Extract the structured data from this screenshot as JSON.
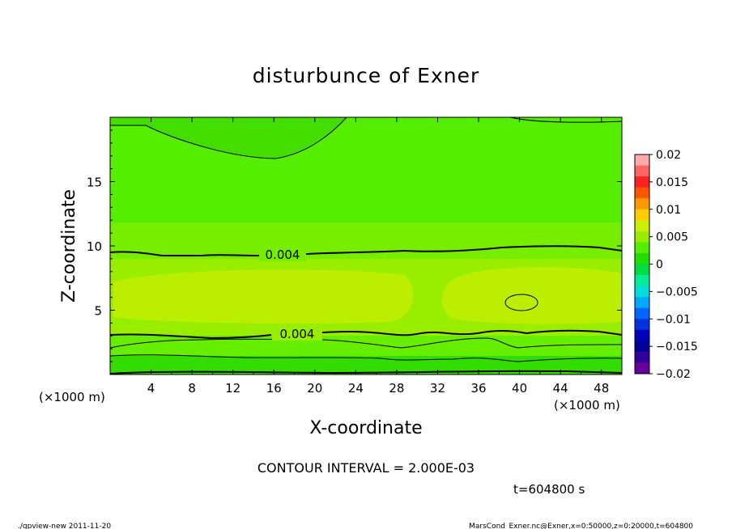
{
  "chart_data": {
    "type": "heatmap",
    "title": "disturbunce of Exner",
    "xlabel": "X-coordinate",
    "ylabel": "Z-coordinate",
    "x_unit": "(×1000 m)",
    "x_unit_right": "(×1000 m)",
    "xlim": [
      0,
      50
    ],
    "ylim": [
      0,
      20
    ],
    "x_ticks": [
      4,
      8,
      12,
      16,
      20,
      24,
      28,
      32,
      36,
      40,
      44,
      48
    ],
    "y_ticks": [
      5,
      10,
      15
    ],
    "contour_interval_text": "CONTOUR INTERVAL = 2.000E-03",
    "time_text": "t=604800 s",
    "contour_labels": [
      "0.004",
      "0.004"
    ],
    "colorbar": {
      "ticks": [
        "0.02",
        "0.015",
        "0.01",
        "0.005",
        "0",
        "−0.005",
        "−0.01",
        "−0.015",
        "−0.02"
      ],
      "colors": [
        "#ffaaaa",
        "#ff6666",
        "#ff2222",
        "#ff5500",
        "#ff9900",
        "#ffcc00",
        "#ccee00",
        "#99ee00",
        "#55ee00",
        "#22dd00",
        "#00dd44",
        "#00ee99",
        "#00dddd",
        "#00aaff",
        "#0066ff",
        "#0033dd",
        "#0000bb",
        "#000099",
        "#330099",
        "#660099"
      ]
    }
  },
  "footer": {
    "left": "./gpview-new   2011-11-20",
    "right": "MarsCond_Exner.nc@Exner,x=0:50000,z=0:20000,t=604800"
  }
}
